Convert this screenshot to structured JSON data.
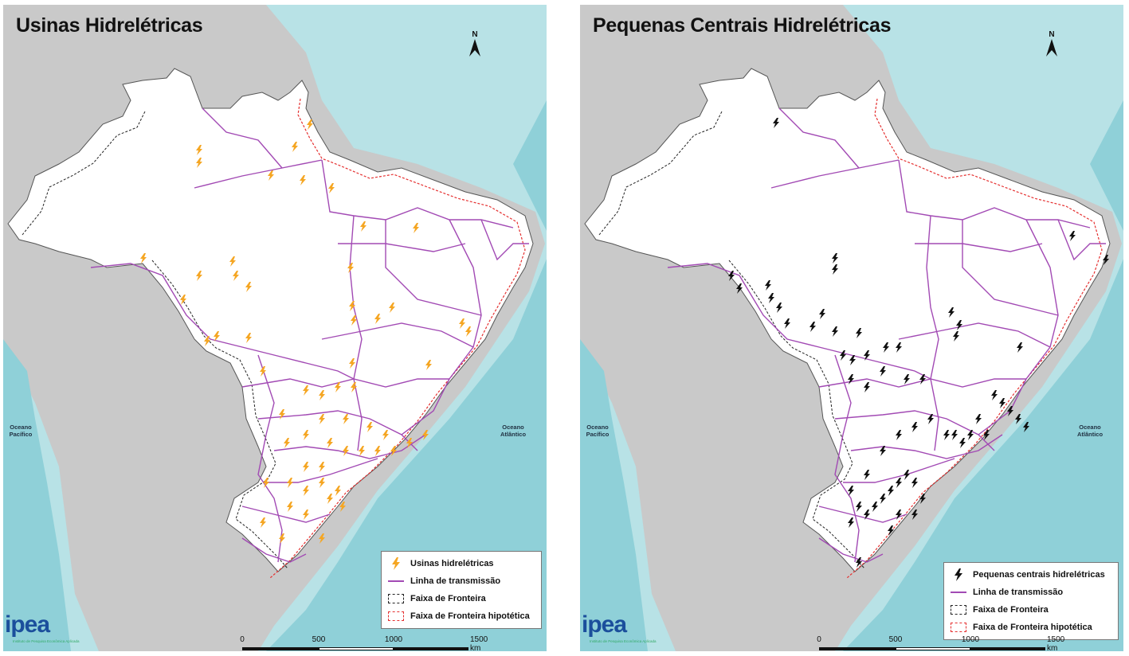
{
  "panels": [
    {
      "title": "Usinas Hidrelétricas",
      "north": "N",
      "oceans": {
        "pacific": "Oceano\nPacífico",
        "atlantic": "Oceano\nAtlântico"
      },
      "legend": [
        {
          "label": "Usinas hidrelétricas",
          "symbol": "orange-lightning-icon"
        },
        {
          "label": "Linha de transmissão",
          "symbol": "purple-line"
        },
        {
          "label": "Faixa de Fronteira",
          "symbol": "black-dashed-box"
        },
        {
          "label": "Faixa de Fronteira hipotética",
          "symbol": "red-dashed-box"
        }
      ],
      "scale": {
        "ticks": [
          "0",
          "500",
          "1000",
          "1500 km"
        ]
      },
      "logo": {
        "word": "ipea",
        "subtitle": "Instituto de Pesquisa Econômica Aplicada"
      },
      "marker_color": "#f5a623"
    },
    {
      "title": "Pequenas Centrais Hidrelétricas",
      "north": "N",
      "oceans": {
        "pacific": "Oceano\nPacífico",
        "atlantic": "Oceano\nAtlântico"
      },
      "legend": [
        {
          "label": "Pequenas centrais hidrelétricas",
          "symbol": "black-lightning-icon"
        },
        {
          "label": "Linha de transmissão",
          "symbol": "purple-line"
        },
        {
          "label": "Faixa de Fronteira",
          "symbol": "black-dashed-box"
        },
        {
          "label": "Faixa de Fronteira hipotética",
          "symbol": "red-dashed-box"
        }
      ],
      "scale": {
        "ticks": [
          "0",
          "500",
          "1000",
          "1500 km"
        ]
      },
      "logo": {
        "word": "ipea",
        "subtitle": "Instituto de Pesquisa Econômica Aplicada"
      },
      "marker_color": "#111111"
    }
  ],
  "colors": {
    "ocean": "#8fd0d8",
    "shelf": "#b8e2e6",
    "land": "#c9c9c9",
    "brazil": "#ffffff",
    "transmission": "#a24ab4",
    "border_band": "#222222",
    "hypothetical_band": "#e53030"
  }
}
